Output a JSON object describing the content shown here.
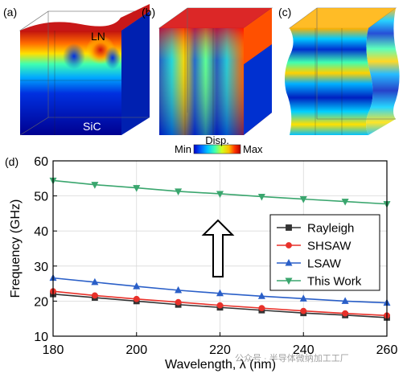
{
  "panels": {
    "a": {
      "label": "(a)",
      "top_label": "LN",
      "bottom_label": "SiC"
    },
    "b": {
      "label": "(b)"
    },
    "c": {
      "label": "(c)"
    }
  },
  "colorbar": {
    "title": "Disp.",
    "min_label": "Min",
    "max_label": "Max",
    "colors": [
      "#0000c8",
      "#0060ff",
      "#00c8ff",
      "#40ffb0",
      "#d0ff20",
      "#ffc000",
      "#ff3000",
      "#b00000"
    ]
  },
  "chart_data": {
    "type": "line",
    "panel_label": "(d)",
    "xlabel": "Wavelength, λ (nm)",
    "ylabel": "Frequency (GHz)",
    "xlim": [
      180,
      260
    ],
    "ylim": [
      10,
      60
    ],
    "xticks": [
      180,
      200,
      220,
      240,
      260
    ],
    "yticks": [
      10,
      20,
      30,
      40,
      50,
      60
    ],
    "grid": true,
    "legend_position": "right-center",
    "x": [
      180,
      190,
      200,
      210,
      220,
      230,
      240,
      250,
      260
    ],
    "series": [
      {
        "name": "Rayleigh",
        "color": "#333333",
        "marker": "square",
        "values": [
          22.0,
          21.0,
          20.0,
          19.0,
          18.2,
          17.4,
          16.6,
          16.0,
          15.3
        ]
      },
      {
        "name": "SHSAW",
        "color": "#e8312a",
        "marker": "circle",
        "values": [
          22.8,
          21.6,
          20.6,
          19.7,
          18.8,
          18.0,
          17.2,
          16.5,
          15.9
        ]
      },
      {
        "name": "LSAW",
        "color": "#2a5fc8",
        "marker": "triangle",
        "values": [
          26.6,
          25.4,
          24.2,
          23.1,
          22.2,
          21.4,
          20.7,
          20.0,
          19.5
        ]
      },
      {
        "name": "This Work",
        "color": "#3aa66e",
        "marker": "triangle-down",
        "values": [
          54.4,
          53.2,
          52.3,
          51.3,
          50.6,
          49.8,
          49.1,
          48.4,
          47.7
        ]
      }
    ]
  },
  "watermark": "公众号 · 半导体微纳加工工厂"
}
